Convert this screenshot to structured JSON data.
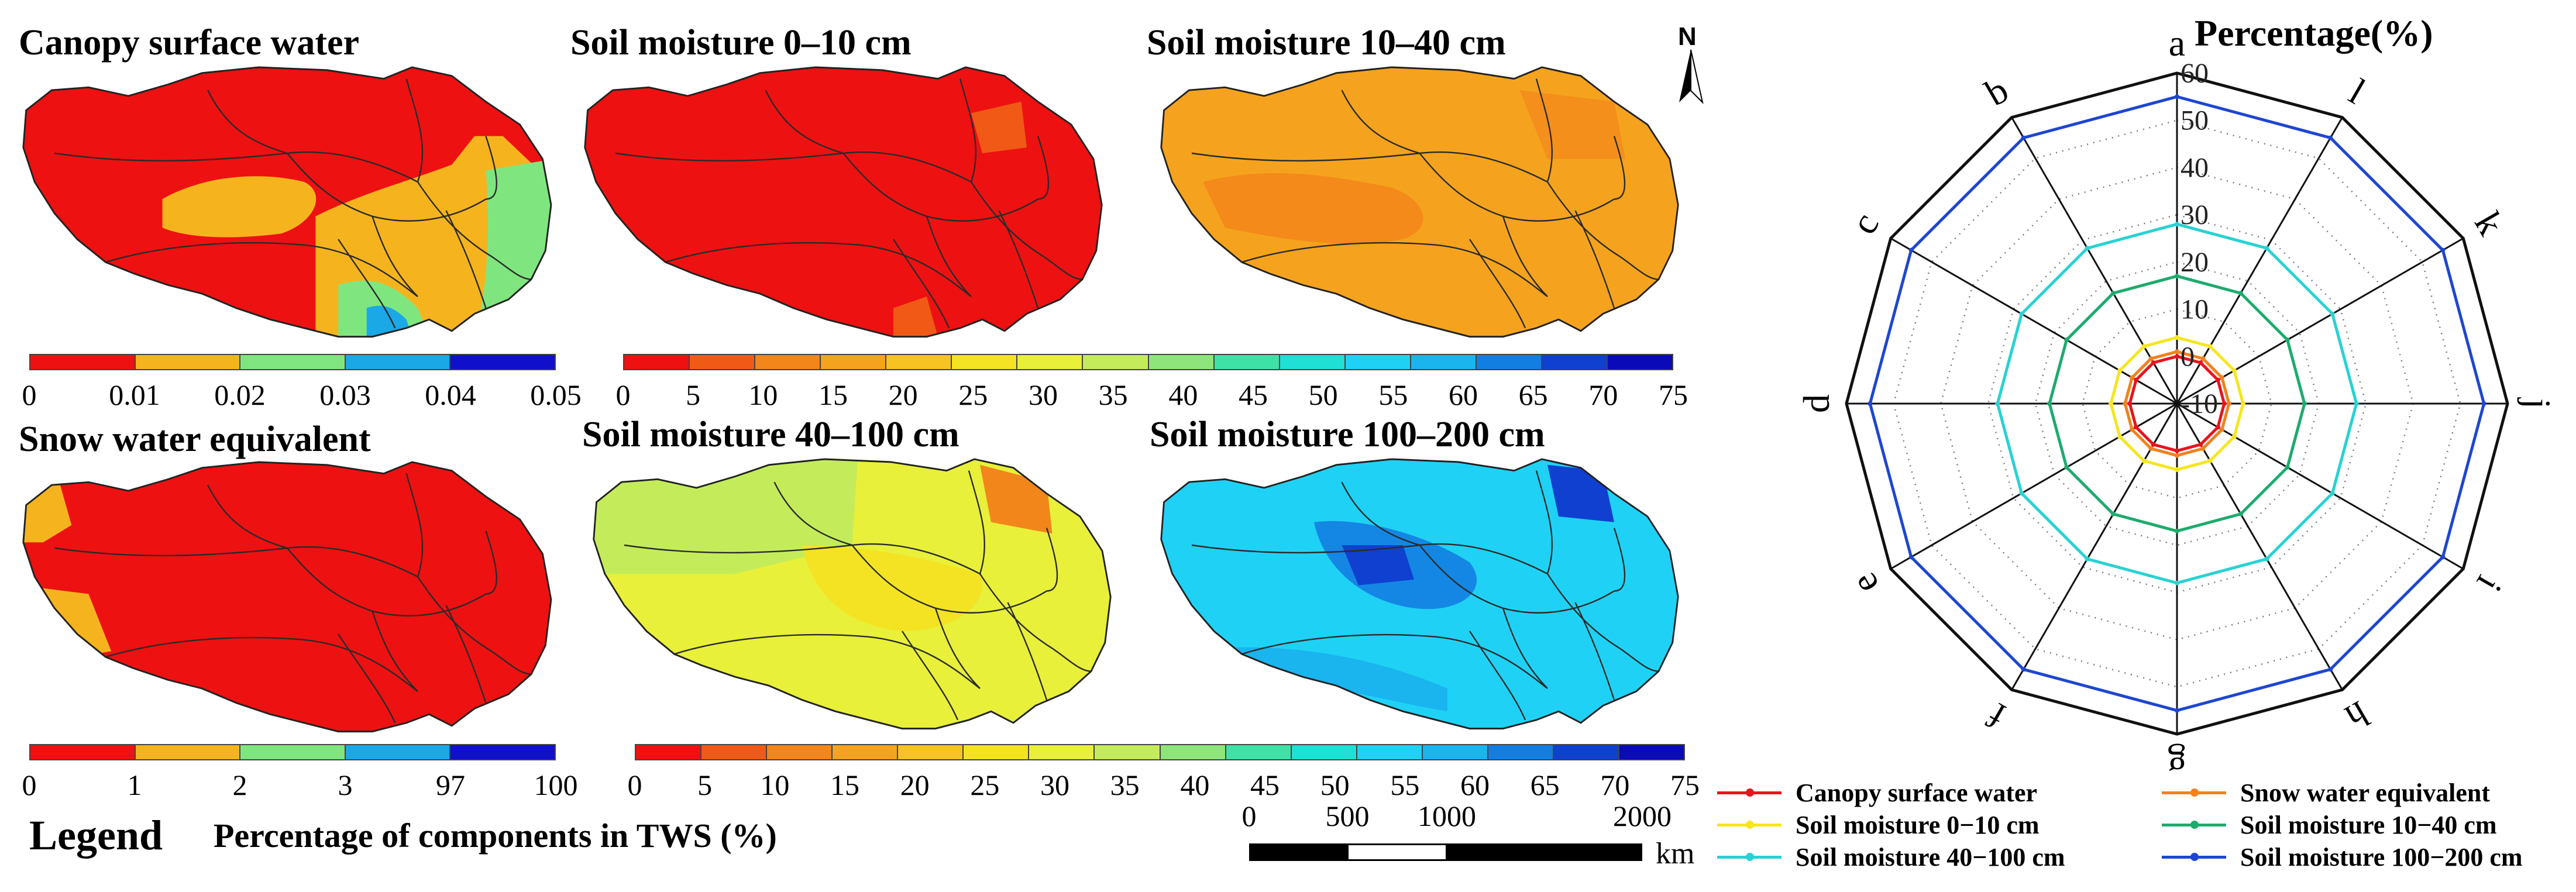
{
  "maps": [
    {
      "id": "canopy",
      "title": "Canopy surface water",
      "colorbar": "cb_small",
      "fill": "#ee1111"
    },
    {
      "id": "sm0_10",
      "title": "Soil moisture 0–10 cm",
      "colorbar": "cb_wide",
      "fill": "#ee1111"
    },
    {
      "id": "sm10_40",
      "title": "Soil moisture 10–40 cm",
      "colorbar": "cb_wide",
      "fill": "#f5a31e"
    },
    {
      "id": "swe",
      "title": "Snow water equivalent",
      "colorbar": "cb_swe",
      "fill": "#ee1111"
    },
    {
      "id": "sm40_100",
      "title": "Soil moisture 40–100 cm",
      "colorbar": "cb_wide2",
      "fill": "#e8ef3a"
    },
    {
      "id": "sm100_200",
      "title": "Soil moisture 100–200 cm",
      "colorbar": "cb_wide2",
      "fill": "#1fd2f5"
    }
  ],
  "colorbars": {
    "cb_small": {
      "colors": [
        "#ee1111",
        "#f5b41e",
        "#7fe67f",
        "#1aa8e6",
        "#1010cc"
      ],
      "ticks": [
        "0",
        "0.01",
        "0.02",
        "0.03",
        "0.04",
        "0.05"
      ]
    },
    "cb_swe": {
      "colors": [
        "#ee1111",
        "#f5b41e",
        "#7fe67f",
        "#1aa8e6",
        "#1010cc"
      ],
      "ticks": [
        "0",
        "1",
        "2",
        "3",
        "97",
        "100"
      ]
    },
    "cb_wide": {
      "colors": [
        "#ee1111",
        "#f05a16",
        "#f3861a",
        "#f5a31e",
        "#f7c322",
        "#f4e322",
        "#e8f03a",
        "#c4ec5a",
        "#8ee67a",
        "#3fe2a6",
        "#1fe0d4",
        "#1fd2f5",
        "#1ab4ef",
        "#137ee2",
        "#1040d0",
        "#0a0ab8"
      ],
      "ticks": [
        "0",
        "5",
        "10",
        "15",
        "20",
        "25",
        "30",
        "35",
        "40",
        "45",
        "50",
        "55",
        "60",
        "65",
        "70",
        "75"
      ]
    },
    "cb_wide2": {
      "colors": [
        "#ee1111",
        "#f05a16",
        "#f3861a",
        "#f5a31e",
        "#f7c322",
        "#f4e322",
        "#e8f03a",
        "#c4ec5a",
        "#8ee67a",
        "#3fe2a6",
        "#1fe0d4",
        "#1fd2f5",
        "#1ab4ef",
        "#137ee2",
        "#1040d0",
        "#0a0ab8"
      ],
      "ticks": [
        "0",
        "5",
        "10",
        "15",
        "20",
        "25",
        "30",
        "35",
        "40",
        "45",
        "50",
        "55",
        "60",
        "65",
        "70",
        "75"
      ]
    }
  },
  "north_label": "N",
  "legend": {
    "label": "Legend",
    "caption": "Percentage of components in TWS (%)"
  },
  "scalebar": {
    "ticks": [
      "0",
      "500",
      "1000",
      "2000"
    ],
    "unit": "km"
  },
  "radar": {
    "title": "Percentage(%)",
    "axes": [
      "a",
      "l",
      "k",
      "j",
      "i",
      "h",
      "g",
      "f",
      "e",
      "d",
      "c",
      "b"
    ],
    "rlim": [
      -10,
      60
    ],
    "rticks": [
      "-10",
      "0",
      "10",
      "20",
      "30",
      "40",
      "50",
      "60"
    ],
    "grid": "dotted"
  },
  "chart_data": {
    "type": "radar",
    "title": "Percentage(%)",
    "categories": [
      "a",
      "l",
      "k",
      "j",
      "i",
      "h",
      "g",
      "f",
      "e",
      "d",
      "c",
      "b"
    ],
    "rlim": [
      -10,
      60
    ],
    "series": [
      {
        "name": "Canopy surface water",
        "color": "#e8141e",
        "values": [
          0,
          0,
          0,
          0,
          0,
          0,
          0,
          0,
          0,
          0,
          0,
          0
        ]
      },
      {
        "name": "Snow water equivalent",
        "color": "#f0821e",
        "values": [
          1,
          1,
          1,
          1,
          1,
          1,
          1,
          1,
          1,
          1,
          1,
          1
        ]
      },
      {
        "name": "Soil moisture 0−10 cm",
        "color": "#f5e61e",
        "values": [
          4,
          4,
          4,
          4,
          4,
          4,
          4,
          4,
          4,
          4,
          4,
          4
        ]
      },
      {
        "name": "Soil moisture 10−40 cm",
        "color": "#1eaa6e",
        "values": [
          17,
          17,
          17,
          17,
          17,
          17,
          17,
          17,
          17,
          17,
          17,
          17
        ]
      },
      {
        "name": "Soil moisture 40−100 cm",
        "color": "#28d2d2",
        "values": [
          28,
          28,
          28,
          28,
          28,
          28,
          28,
          28,
          28,
          28,
          28,
          28
        ]
      },
      {
        "name": "Soil moisture 100−200 cm",
        "color": "#1e46d2",
        "values": [
          55,
          55,
          55,
          55,
          55,
          55,
          55,
          55,
          55,
          55,
          55,
          55
        ]
      }
    ]
  }
}
